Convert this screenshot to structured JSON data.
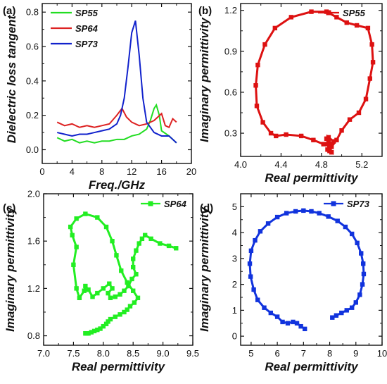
{
  "chart_data": [
    {
      "panel_label": "(a)",
      "type": "line",
      "xlabel": "Freq./GHz",
      "ylabel": "Dielectric loss tangent",
      "xlim": [
        0,
        20
      ],
      "ylim": [
        -0.08,
        0.85
      ],
      "xticks": [
        0,
        4,
        8,
        12,
        16,
        20
      ],
      "yticks": [
        0.0,
        0.2,
        0.4,
        0.6,
        0.8
      ],
      "xtick_labels": [
        "0",
        "4",
        "8",
        "12",
        "16",
        "20"
      ],
      "ytick_labels": [
        "0.0",
        "0.2",
        "0.4",
        "0.6",
        "0.8"
      ],
      "legend_position": "top-left",
      "series": [
        {
          "name": "SP55",
          "color": "#22dd22",
          "marker": "none",
          "x": [
            2,
            3,
            4,
            5,
            6,
            7,
            8,
            9,
            10,
            11,
            12,
            13,
            14,
            14.5,
            15,
            15.3,
            15.7,
            16,
            17,
            18
          ],
          "y": [
            0.07,
            0.05,
            0.06,
            0.04,
            0.05,
            0.04,
            0.05,
            0.05,
            0.06,
            0.06,
            0.08,
            0.09,
            0.12,
            0.17,
            0.24,
            0.26,
            0.2,
            0.11,
            0.08,
            0.04
          ]
        },
        {
          "name": "SP64",
          "color": "#dd2222",
          "marker": "none",
          "x": [
            2,
            3,
            4,
            5,
            6,
            7,
            8,
            9,
            10,
            10.7,
            11.3,
            12,
            13,
            14,
            15,
            16,
            16.5,
            17,
            17.5,
            18
          ],
          "y": [
            0.16,
            0.14,
            0.15,
            0.13,
            0.14,
            0.13,
            0.14,
            0.15,
            0.2,
            0.24,
            0.19,
            0.16,
            0.14,
            0.15,
            0.17,
            0.21,
            0.14,
            0.13,
            0.18,
            0.16
          ]
        },
        {
          "name": "SP73",
          "color": "#1122cc",
          "marker": "none",
          "x": [
            2,
            3,
            4,
            5,
            6,
            7,
            8,
            9,
            10,
            10.5,
            11,
            11.5,
            12,
            12.5,
            13,
            13.5,
            14,
            15,
            16,
            17,
            18
          ],
          "y": [
            0.1,
            0.09,
            0.08,
            0.09,
            0.09,
            0.1,
            0.11,
            0.12,
            0.15,
            0.2,
            0.3,
            0.48,
            0.68,
            0.75,
            0.55,
            0.3,
            0.16,
            0.1,
            0.08,
            0.08,
            0.04
          ]
        }
      ]
    },
    {
      "panel_label": "(b)",
      "type": "scatter",
      "xlabel": "Real permittivity",
      "ylabel": "Imaginary permittivity",
      "xlim": [
        4.0,
        5.4
      ],
      "ylim": [
        0.13,
        1.25
      ],
      "xticks": [
        4.0,
        4.4,
        4.8,
        5.2
      ],
      "yticks": [
        0.3,
        0.6,
        0.9,
        1.2
      ],
      "xtick_labels": [
        "4.0",
        "4.4",
        "4.8",
        "5.2"
      ],
      "ytick_labels": [
        "0.3",
        "0.6",
        "0.9",
        "1.2"
      ],
      "legend_position": "top-right",
      "series": [
        {
          "name": "SP55",
          "color": "#dd1111",
          "marker": "square",
          "x": [
            4.88,
            4.86,
            4.82,
            4.72,
            4.6,
            4.45,
            4.35,
            4.3,
            4.22,
            4.16,
            4.15,
            4.17,
            4.24,
            4.34,
            4.5,
            4.7,
            4.85,
            4.95,
            5.05,
            5.15,
            5.26,
            5.3,
            5.31,
            5.28,
            5.24,
            5.17,
            5.08,
            5.0,
            4.95,
            4.9,
            4.87,
            4.92,
            4.88,
            4.85,
            4.9,
            4.86,
            4.9,
            4.88
          ],
          "y": [
            0.17,
            0.22,
            0.22,
            0.25,
            0.28,
            0.29,
            0.28,
            0.3,
            0.38,
            0.5,
            0.65,
            0.8,
            0.95,
            1.07,
            1.15,
            1.19,
            1.19,
            1.15,
            1.11,
            1.09,
            1.07,
            0.95,
            0.82,
            0.7,
            0.55,
            0.45,
            0.4,
            0.32,
            0.25,
            0.2,
            0.27,
            0.24,
            0.19,
            0.26,
            0.22,
            0.18,
            0.16,
            0.2
          ]
        }
      ]
    },
    {
      "panel_label": "(c)",
      "type": "scatter",
      "xlabel": "Real permittivity",
      "ylabel": "Imaginary permittivity",
      "xlim": [
        7.0,
        9.5
      ],
      "ylim": [
        0.72,
        2.0
      ],
      "xticks": [
        7.0,
        7.5,
        8.0,
        8.5,
        9.0,
        9.5
      ],
      "yticks": [
        0.8,
        1.2,
        1.6,
        2.0
      ],
      "xtick_labels": [
        "7.0",
        "7.5",
        "8.0",
        "8.5",
        "9.0",
        "9.5"
      ],
      "ytick_labels": [
        "0.8",
        "1.2",
        "1.6",
        "2.0"
      ],
      "legend_position": "top-right",
      "series": [
        {
          "name": "SP64",
          "color": "#22ee22",
          "marker": "square",
          "x": [
            9.22,
            9.1,
            8.95,
            8.8,
            8.7,
            8.65,
            8.6,
            8.55,
            8.5,
            8.5,
            8.55,
            8.48,
            8.42,
            8.35,
            8.28,
            8.2,
            8.12,
            8.08,
            8.15,
            8.1,
            8.0,
            7.9,
            7.82,
            7.75,
            7.7,
            7.68,
            7.6,
            7.55,
            7.5,
            7.55,
            7.48,
            7.45,
            7.55,
            7.7,
            7.9,
            8.05,
            8.15,
            8.22,
            8.3,
            8.4,
            8.5,
            8.58,
            8.52,
            8.45,
            8.4,
            8.35,
            8.28,
            8.2,
            8.12,
            8.08,
            8.05,
            8.0,
            7.95,
            7.9,
            7.85,
            7.8,
            7.75,
            7.72,
            7.7
          ],
          "y": [
            1.54,
            1.56,
            1.58,
            1.62,
            1.65,
            1.62,
            1.58,
            1.52,
            1.45,
            1.38,
            1.32,
            1.28,
            1.22,
            1.18,
            1.15,
            1.13,
            1.12,
            1.16,
            1.2,
            1.24,
            1.2,
            1.16,
            1.13,
            1.19,
            1.22,
            1.18,
            1.12,
            1.2,
            1.4,
            1.55,
            1.65,
            1.72,
            1.79,
            1.83,
            1.8,
            1.72,
            1.6,
            1.48,
            1.35,
            1.25,
            1.18,
            1.12,
            1.08,
            1.05,
            1.02,
            1.0,
            0.98,
            0.96,
            0.94,
            0.92,
            0.9,
            0.88,
            0.86,
            0.85,
            0.84,
            0.83,
            0.82,
            0.82,
            0.82
          ]
        }
      ]
    },
    {
      "panel_label": "(d)",
      "type": "scatter",
      "xlabel": "Real permittivity",
      "ylabel": "Imaginary permittivity",
      "xlim": [
        4.6,
        10.0
      ],
      "ylim": [
        -0.35,
        5.5
      ],
      "xticks": [
        5,
        6,
        7,
        8,
        9,
        10
      ],
      "yticks": [
        0,
        1,
        2,
        3,
        4,
        5
      ],
      "xtick_labels": [
        "5",
        "6",
        "7",
        "8",
        "9",
        "10"
      ],
      "ytick_labels": [
        "0",
        "1",
        "2",
        "3",
        "4",
        "5"
      ],
      "legend_position": "top-right",
      "series": [
        {
          "name": "SP73",
          "color": "#1133dd",
          "marker": "square",
          "x": [
            7.05,
            6.9,
            6.75,
            6.6,
            6.4,
            6.2,
            6.0,
            5.75,
            5.5,
            5.25,
            5.1,
            4.98,
            4.95,
            5.0,
            5.15,
            5.35,
            5.65,
            6.0,
            6.35,
            6.7,
            7.0,
            7.3,
            7.6,
            7.95,
            8.3,
            8.6,
            8.85,
            9.05,
            9.2,
            9.28,
            9.3,
            9.25,
            9.15,
            9.0,
            8.85,
            8.65,
            8.45,
            8.25,
            8.1
          ],
          "y": [
            0.28,
            0.38,
            0.5,
            0.55,
            0.5,
            0.55,
            0.75,
            0.9,
            1.1,
            1.4,
            1.8,
            2.3,
            2.8,
            3.3,
            3.7,
            4.05,
            4.35,
            4.6,
            4.75,
            4.82,
            4.85,
            4.82,
            4.75,
            4.62,
            4.45,
            4.22,
            3.95,
            3.6,
            3.2,
            2.8,
            2.4,
            2.0,
            1.6,
            1.3,
            1.1,
            1.0,
            0.9,
            0.8,
            0.72
          ]
        }
      ]
    }
  ]
}
